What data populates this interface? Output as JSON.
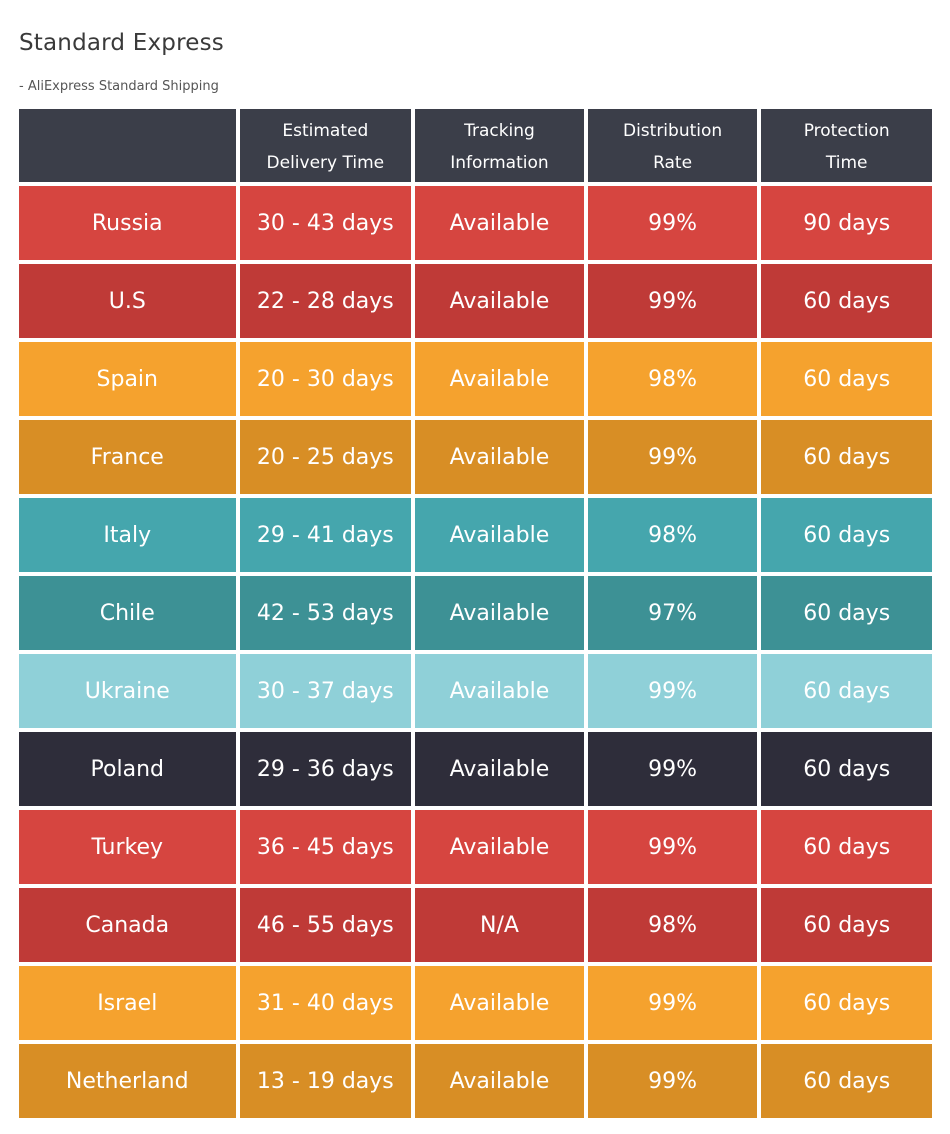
{
  "title": "Standard Express",
  "subtitle": "- AliExpress Standard Shipping",
  "header": {
    "country": "",
    "delivery_line1": "Estimated",
    "delivery_line2": "Delivery Time",
    "tracking_line1": "Tracking",
    "tracking_line2": "Information",
    "distribution_line1": "Distribution",
    "distribution_line2": "Rate",
    "protection_line1": "Protection",
    "protection_line2": "Time"
  },
  "colors": {
    "header_bg": "#3b3e49",
    "red": "#d64540",
    "dark_red": "#bf3a37",
    "orange": "#f5a22e",
    "dark_orange": "#d88e25",
    "teal": "#45a6ad",
    "dark_teal": "#3d9195",
    "light_teal": "#8fd0d8",
    "navy": "#2e2d3a"
  },
  "rows": [
    {
      "country": "Russia",
      "delivery": "30 - 43 days",
      "tracking": "Available",
      "rate": "99%",
      "protection": "90 days",
      "color": "#d64540"
    },
    {
      "country": "U.S",
      "delivery": "22 - 28 days",
      "tracking": "Available",
      "rate": "99%",
      "protection": "60 days",
      "color": "#bf3a37"
    },
    {
      "country": "Spain",
      "delivery": "20 - 30 days",
      "tracking": "Available",
      "rate": "98%",
      "protection": "60 days",
      "color": "#f5a22e"
    },
    {
      "country": "France",
      "delivery": "20 - 25 days",
      "tracking": "Available",
      "rate": "99%",
      "protection": "60 days",
      "color": "#d88e25"
    },
    {
      "country": "Italy",
      "delivery": "29 - 41 days",
      "tracking": "Available",
      "rate": "98%",
      "protection": "60 days",
      "color": "#45a6ad"
    },
    {
      "country": "Chile",
      "delivery": "42 - 53 days",
      "tracking": "Available",
      "rate": "97%",
      "protection": "60 days",
      "color": "#3d9195"
    },
    {
      "country": "Ukraine",
      "delivery": "30 - 37 days",
      "tracking": "Available",
      "rate": "99%",
      "protection": "60 days",
      "color": "#8fd0d8"
    },
    {
      "country": "Poland",
      "delivery": "29 - 36 days",
      "tracking": "Available",
      "rate": "99%",
      "protection": "60 days",
      "color": "#2e2d3a"
    },
    {
      "country": "Turkey",
      "delivery": "36 - 45 days",
      "tracking": "Available",
      "rate": "99%",
      "protection": "60 days",
      "color": "#d64540"
    },
    {
      "country": "Canada",
      "delivery": "46 - 55 days",
      "tracking": "N/A",
      "rate": "98%",
      "protection": "60 days",
      "color": "#bf3a37"
    },
    {
      "country": "Israel",
      "delivery": "31 - 40 days",
      "tracking": "Available",
      "rate": "99%",
      "protection": "60 days",
      "color": "#f5a22e"
    },
    {
      "country": "Netherland",
      "delivery": "13 - 19 days",
      "tracking": "Available",
      "rate": "99%",
      "protection": "60 days",
      "color": "#d88e25"
    }
  ]
}
